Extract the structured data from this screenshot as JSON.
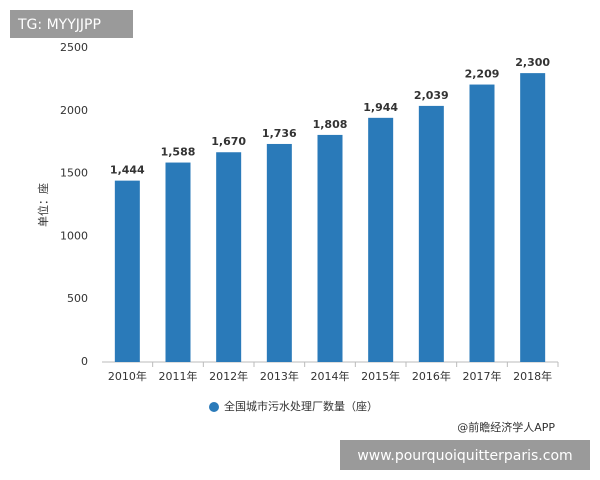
{
  "chart_data": {
    "type": "bar",
    "y_label": "单位：座",
    "categories": [
      "2010年",
      "2011年",
      "2012年",
      "2013年",
      "2014年",
      "2015年",
      "2016年",
      "2017年",
      "2018年"
    ],
    "series": [
      {
        "name": "全国城市污水处理厂数量（座）",
        "color": "#2a7ab9",
        "values": [
          1444,
          1588,
          1670,
          1736,
          1808,
          1944,
          2039,
          2209,
          2300
        ],
        "value_labels": [
          "1,444",
          "1,588",
          "1,670",
          "1,736",
          "1,808",
          "1,944",
          "2,039",
          "2,209",
          "2,300"
        ]
      }
    ],
    "ylim": [
      0,
      2500
    ],
    "yticks": [
      0,
      500,
      1000,
      1500,
      2000,
      2500
    ],
    "grid": false,
    "source": "@前瞻经济学人APP"
  },
  "overlay_top": "TG: MYYJJPP",
  "overlay_bottom": "www.pourquoiquitterparis.com"
}
